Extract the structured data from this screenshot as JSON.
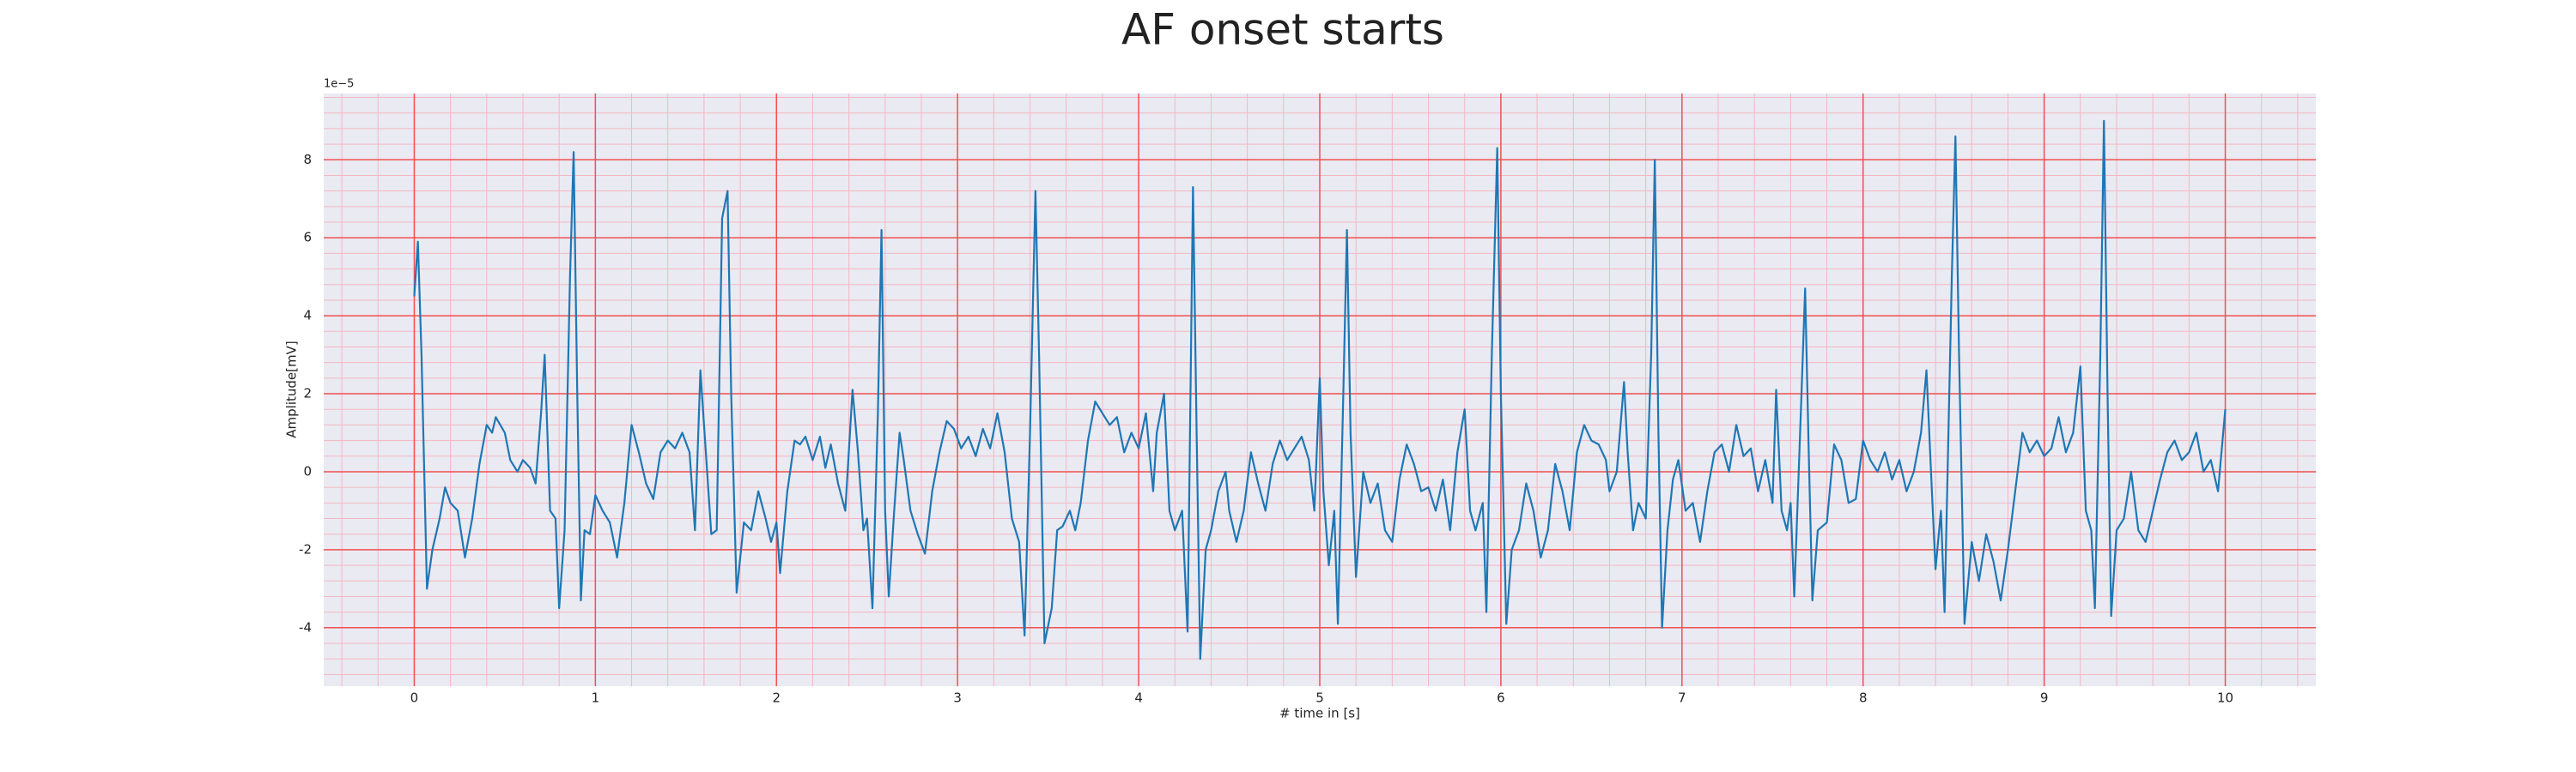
{
  "chart_data": {
    "type": "line",
    "title": "AF onset starts",
    "xlabel": "# time in [s]",
    "ylabel": "Amplitude[mV]",
    "y_offset_label": "1e−5",
    "xlim": [
      -0.5,
      10.5
    ],
    "ylim": [
      -5.5,
      9.7
    ],
    "xticks": [
      0,
      1,
      2,
      3,
      4,
      5,
      6,
      7,
      8,
      9,
      10
    ],
    "yticks": [
      -4,
      -2,
      0,
      2,
      4,
      6,
      8
    ],
    "grid": true,
    "minor_grid": true,
    "x": [
      0.0,
      0.02,
      0.04,
      0.07,
      0.1,
      0.14,
      0.17,
      0.2,
      0.24,
      0.28,
      0.32,
      0.36,
      0.4,
      0.43,
      0.45,
      0.5,
      0.53,
      0.57,
      0.6,
      0.64,
      0.67,
      0.7,
      0.72,
      0.75,
      0.78,
      0.8,
      0.83,
      0.86,
      0.88,
      0.9,
      0.92,
      0.94,
      0.97,
      1.0,
      1.04,
      1.08,
      1.12,
      1.16,
      1.2,
      1.24,
      1.28,
      1.32,
      1.36,
      1.4,
      1.44,
      1.48,
      1.52,
      1.55,
      1.58,
      1.61,
      1.64,
      1.67,
      1.7,
      1.73,
      1.75,
      1.78,
      1.82,
      1.86,
      1.9,
      1.94,
      1.97,
      2.0,
      2.02,
      2.06,
      2.1,
      2.13,
      2.16,
      2.2,
      2.24,
      2.27,
      2.3,
      2.34,
      2.38,
      2.42,
      2.45,
      2.48,
      2.5,
      2.53,
      2.56,
      2.58,
      2.6,
      2.62,
      2.65,
      2.68,
      2.7,
      2.74,
      2.78,
      2.82,
      2.86,
      2.9,
      2.94,
      2.98,
      3.02,
      3.06,
      3.1,
      3.14,
      3.18,
      3.22,
      3.26,
      3.3,
      3.34,
      3.37,
      3.4,
      3.43,
      3.45,
      3.48,
      3.52,
      3.55,
      3.58,
      3.62,
      3.65,
      3.68,
      3.72,
      3.76,
      3.8,
      3.84,
      3.88,
      3.92,
      3.96,
      4.0,
      4.04,
      4.08,
      4.1,
      4.14,
      4.17,
      4.2,
      4.24,
      4.27,
      4.3,
      4.32,
      4.34,
      4.37,
      4.4,
      4.44,
      4.48,
      4.5,
      4.54,
      4.58,
      4.62,
      4.66,
      4.7,
      4.74,
      4.78,
      4.82,
      4.86,
      4.9,
      4.94,
      4.97,
      5.0,
      5.02,
      5.05,
      5.08,
      5.1,
      5.13,
      5.15,
      5.17,
      5.2,
      5.24,
      5.28,
      5.32,
      5.36,
      5.4,
      5.44,
      5.48,
      5.52,
      5.56,
      5.6,
      5.64,
      5.68,
      5.72,
      5.76,
      5.8,
      5.83,
      5.86,
      5.9,
      5.92,
      5.95,
      5.98,
      6.0,
      6.03,
      6.06,
      6.1,
      6.14,
      6.18,
      6.22,
      6.26,
      6.3,
      6.34,
      6.38,
      6.42,
      6.46,
      6.5,
      6.54,
      6.58,
      6.6,
      6.64,
      6.68,
      6.7,
      6.73,
      6.76,
      6.8,
      6.83,
      6.85,
      6.87,
      6.89,
      6.92,
      6.95,
      6.98,
      7.02,
      7.06,
      7.1,
      7.14,
      7.18,
      7.22,
      7.26,
      7.3,
      7.34,
      7.38,
      7.42,
      7.46,
      7.5,
      7.52,
      7.55,
      7.58,
      7.6,
      7.62,
      7.66,
      7.68,
      7.7,
      7.72,
      7.75,
      7.8,
      7.84,
      7.88,
      7.92,
      7.96,
      8.0,
      8.04,
      8.08,
      8.12,
      8.16,
      8.2,
      8.24,
      8.28,
      8.32,
      8.35,
      8.38,
      8.4,
      8.43,
      8.45,
      8.49,
      8.51,
      8.53,
      8.56,
      8.6,
      8.64,
      8.68,
      8.72,
      8.76,
      8.8,
      8.84,
      8.88,
      8.92,
      8.96,
      9.0,
      9.04,
      9.08,
      9.12,
      9.16,
      9.2,
      9.23,
      9.26,
      9.28,
      9.31,
      9.33,
      9.35,
      9.37,
      9.4,
      9.44,
      9.48,
      9.52,
      9.56,
      9.6,
      9.64,
      9.68,
      9.72,
      9.76,
      9.8,
      9.84,
      9.88,
      9.92,
      9.96,
      10.0
    ],
    "series": [
      {
        "color": "#1f77b4",
        "values": [
          4.5,
          5.9,
          3.0,
          -3.0,
          -2.0,
          -1.2,
          -0.4,
          -0.8,
          -1.0,
          -2.2,
          -1.2,
          0.2,
          1.2,
          1.0,
          1.4,
          1.0,
          0.3,
          0.0,
          0.3,
          0.1,
          -0.3,
          1.5,
          3.0,
          -1.0,
          -1.2,
          -3.5,
          -1.5,
          5.0,
          8.2,
          2.0,
          -3.3,
          -1.5,
          -1.6,
          -0.6,
          -1.0,
          -1.3,
          -2.2,
          -0.8,
          1.2,
          0.5,
          -0.3,
          -0.7,
          0.5,
          0.8,
          0.6,
          1.0,
          0.5,
          -1.5,
          2.6,
          0.5,
          -1.6,
          -1.5,
          6.5,
          7.2,
          2.0,
          -3.1,
          -1.3,
          -1.5,
          -0.5,
          -1.2,
          -1.8,
          -1.3,
          -2.6,
          -0.5,
          0.8,
          0.7,
          0.9,
          0.3,
          0.9,
          0.1,
          0.7,
          -0.3,
          -1.0,
          2.1,
          0.5,
          -1.5,
          -1.2,
          -3.5,
          1.5,
          6.2,
          -1.0,
          -3.2,
          -1.0,
          1.0,
          0.4,
          -1.0,
          -1.6,
          -2.1,
          -0.5,
          0.5,
          1.3,
          1.1,
          0.6,
          0.9,
          0.4,
          1.1,
          0.6,
          1.5,
          0.5,
          -1.2,
          -1.8,
          -4.2,
          1.0,
          7.2,
          3.0,
          -4.4,
          -3.5,
          -1.5,
          -1.4,
          -1.0,
          -1.5,
          -0.8,
          0.8,
          1.8,
          1.5,
          1.2,
          1.4,
          0.5,
          1.0,
          0.6,
          1.5,
          -0.5,
          1.0,
          2.0,
          -1.0,
          -1.5,
          -1.0,
          -4.1,
          7.3,
          1.0,
          -4.8,
          -2.0,
          -1.5,
          -0.5,
          0.0,
          -1.0,
          -1.8,
          -1.0,
          0.5,
          -0.3,
          -1.0,
          0.2,
          0.8,
          0.3,
          0.6,
          0.9,
          0.3,
          -1.0,
          2.4,
          -0.5,
          -2.4,
          -1.0,
          -3.9,
          2.0,
          6.2,
          1.0,
          -2.7,
          0.0,
          -0.8,
          -0.3,
          -1.5,
          -1.8,
          -0.2,
          0.7,
          0.2,
          -0.5,
          -0.4,
          -1.0,
          -0.2,
          -1.5,
          0.5,
          1.6,
          -1.0,
          -1.5,
          -0.8,
          -3.6,
          3.0,
          8.3,
          2.0,
          -3.9,
          -2.0,
          -1.5,
          -0.3,
          -1.0,
          -2.2,
          -1.5,
          0.2,
          -0.5,
          -1.5,
          0.5,
          1.2,
          0.8,
          0.7,
          0.3,
          -0.5,
          0.0,
          2.3,
          0.5,
          -1.5,
          -0.8,
          -1.2,
          3.0,
          8.0,
          1.0,
          -4.0,
          -1.5,
          -0.2,
          0.3,
          -1.0,
          -0.8,
          -1.8,
          -0.5,
          0.5,
          0.7,
          0.0,
          1.2,
          0.4,
          0.6,
          -0.5,
          0.3,
          -0.8,
          2.1,
          -1.0,
          -1.5,
          -0.8,
          -3.2,
          2.0,
          4.7,
          0.5,
          -3.3,
          -1.5,
          -1.3,
          0.7,
          0.3,
          -0.8,
          -0.7,
          0.8,
          0.3,
          0.0,
          0.5,
          -0.2,
          0.3,
          -0.5,
          0.0,
          1.0,
          2.6,
          -0.5,
          -2.5,
          -1.0,
          -3.6,
          5.0,
          8.6,
          3.0,
          -3.9,
          -1.8,
          -2.8,
          -1.6,
          -2.3,
          -3.3,
          -2.0,
          -0.5,
          1.0,
          0.5,
          0.8,
          0.4,
          0.6,
          1.4,
          0.5,
          1.0,
          2.7,
          -1.0,
          -1.5,
          -3.5,
          3.0,
          9.0,
          2.0,
          -3.7,
          -1.5,
          -1.2,
          0.0,
          -1.5,
          -1.8,
          -1.0,
          -0.2,
          0.5,
          0.8,
          0.3,
          0.5,
          1.0,
          0.0,
          0.3,
          -0.5,
          1.6
        ]
      }
    ]
  }
}
